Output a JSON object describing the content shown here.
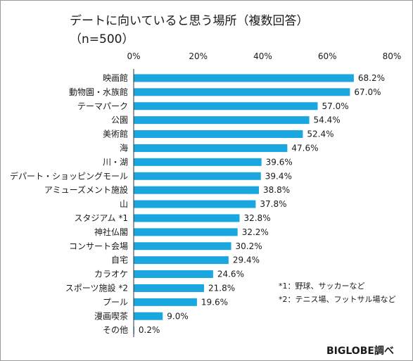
{
  "chart_data": {
    "type": "bar",
    "orientation": "horizontal",
    "title": "デートに向いていると思う場所（複数回答）",
    "subtitle": "（n=500）",
    "categories": [
      "映画館",
      "動物園・水族館",
      "テーマパーク",
      "公園",
      "美術館",
      "海",
      "川・湖",
      "デパート・ショッピングモール",
      "アミューズメント施設",
      "山",
      "スタジアム *1",
      "神社仏閣",
      "コンサート会場",
      "自宅",
      "カラオケ",
      "スポーツ施設 *2",
      "プール",
      "漫画喫茶",
      "その他"
    ],
    "values": [
      68.2,
      67.0,
      57.0,
      54.4,
      52.4,
      47.6,
      39.6,
      39.4,
      38.8,
      37.8,
      32.8,
      32.2,
      30.2,
      29.4,
      24.6,
      21.8,
      19.6,
      9.0,
      0.2
    ],
    "value_labels": [
      "68.2%",
      "67.0%",
      "57.0%",
      "54.4%",
      "52.4%",
      "47.6%",
      "39.6%",
      "39.4%",
      "38.8%",
      "37.8%",
      "32.8%",
      "32.2%",
      "30.2%",
      "29.4%",
      "24.6%",
      "21.8%",
      "19.6%",
      "9.0%",
      "0.2%"
    ],
    "xlim": [
      0,
      80
    ],
    "x_ticks": [
      "0%",
      "20%",
      "40%",
      "60%",
      "80%"
    ],
    "grid": false,
    "axis_position": "top",
    "bar_color": "#1aa7e0",
    "notes": [
      "*1：野球、サッカーなど",
      "*2：テニス場、フットサル場など"
    ],
    "source": "BIGLOBE調べ"
  }
}
